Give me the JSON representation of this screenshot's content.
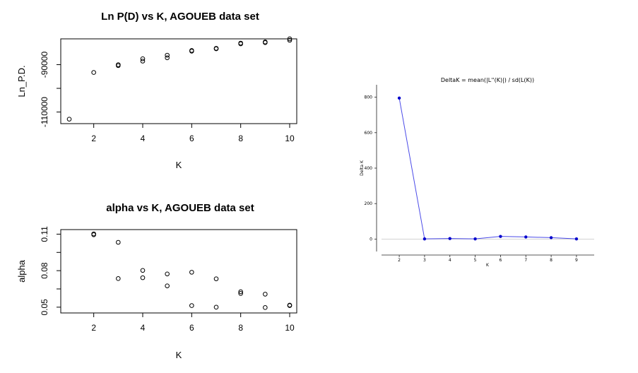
{
  "chart_data": [
    {
      "type": "scatter",
      "title": "Ln P(D) vs K, AGOUEB data set",
      "xlabel": "K",
      "ylabel": "Ln_P.D.",
      "xlim": [
        1,
        10
      ],
      "ylim": [
        -114000,
        -80000
      ],
      "xticks": [
        2,
        4,
        6,
        8,
        10
      ],
      "yticks": [
        -110000,
        -100000,
        -90000
      ],
      "ytick_labels": [
        "-110000",
        "",
        "-90000"
      ],
      "series": [
        {
          "points": [
            [
              1,
              -113000
            ],
            [
              2,
              -93300
            ],
            [
              3,
              -90400
            ],
            [
              3,
              -90000
            ],
            [
              4,
              -88500
            ],
            [
              4,
              -87500
            ],
            [
              5,
              -87100
            ],
            [
              5,
              -86000
            ],
            [
              6,
              -84300
            ],
            [
              6,
              -84000
            ],
            [
              7,
              -83300
            ],
            [
              7,
              -83100
            ],
            [
              8,
              -81200
            ],
            [
              8,
              -80900
            ],
            [
              9,
              -80700
            ],
            [
              9,
              -80400
            ],
            [
              10,
              -79700
            ],
            [
              10,
              -79100
            ]
          ]
        }
      ]
    },
    {
      "type": "scatter",
      "title": "alpha vs K, AGOUEB data set",
      "xlabel": "K",
      "ylabel": "alpha",
      "xlim": [
        1,
        10
      ],
      "ylim": [
        0.047,
        0.112
      ],
      "xticks": [
        2,
        4,
        6,
        8,
        10
      ],
      "yticks": [
        0.05,
        0.065,
        0.08,
        0.095,
        0.11
      ],
      "ytick_labels": [
        "0.05",
        "",
        "0.08",
        "",
        "0.11"
      ],
      "series": [
        {
          "points": [
            [
              2,
              0.1095
            ],
            [
              2,
              0.1102
            ],
            [
              3,
              0.1033
            ],
            [
              3,
              0.0735
            ],
            [
              4,
              0.0802
            ],
            [
              4,
              0.0742
            ],
            [
              5,
              0.0773
            ],
            [
              5,
              0.0675
            ],
            [
              6,
              0.0787
            ],
            [
              6,
              0.0513
            ],
            [
              7,
              0.0733
            ],
            [
              7,
              0.05
            ],
            [
              8,
              0.0627
            ],
            [
              8,
              0.0613
            ],
            [
              9,
              0.0607
            ],
            [
              9,
              0.0497
            ],
            [
              10,
              0.0517
            ],
            [
              10,
              0.0513
            ]
          ]
        }
      ]
    },
    {
      "type": "line",
      "title": "DeltaK = mean(|L''(K)|) / sd(L(K))",
      "xlabel": "K",
      "ylabel": "Delta K",
      "xlim": [
        1.3,
        9.7
      ],
      "ylim": [
        -70,
        870
      ],
      "xticks": [
        2,
        3,
        4,
        5,
        6,
        7,
        8,
        9
      ],
      "yticks": [
        0,
        200,
        400,
        600,
        800
      ],
      "grid": "horizontal line at 0",
      "line_color": "#4a4ae8",
      "marker_color": "#0000cc",
      "x": [
        2,
        3,
        4,
        5,
        6,
        7,
        8,
        9
      ],
      "values": [
        795,
        1,
        3,
        1,
        15,
        12,
        8,
        1
      ]
    }
  ]
}
